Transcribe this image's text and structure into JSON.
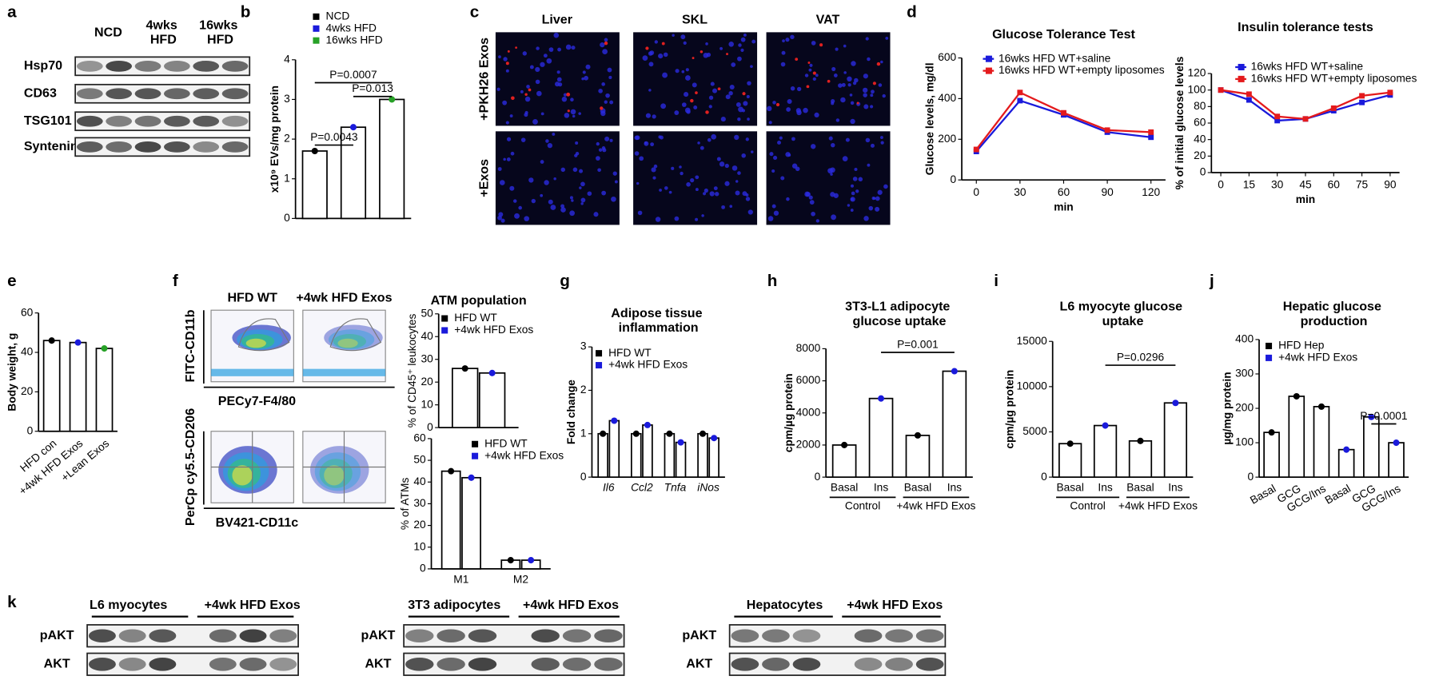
{
  "panel_labels": [
    "a",
    "b",
    "c",
    "d",
    "e",
    "f",
    "g",
    "h",
    "i",
    "j",
    "k"
  ],
  "blot_a": {
    "columns": [
      "NCD",
      "4wks HFD",
      "16wks HFD"
    ],
    "rows": [
      "Hsp70",
      "CD63",
      "TSG101",
      "Syntenin1"
    ]
  },
  "micrographs": {
    "columns": [
      "Liver",
      "SKL",
      "VAT"
    ],
    "rows": [
      "+PKH26 Exos",
      "+Exos"
    ]
  },
  "flow": {
    "columns": [
      "HFD WT",
      "+4wk HFD Exos"
    ],
    "y_axes": [
      "FITC-CD11b",
      "PerCp cy5.5-CD206"
    ],
    "x_axes": [
      "PECy7-F4/80",
      "BV421-CD11c"
    ]
  },
  "blot_k": [
    {
      "groups": [
        "L6 myocytes",
        "+4wk HFD Exos"
      ],
      "rows": [
        "pAKT",
        "AKT"
      ]
    },
    {
      "groups": [
        "3T3 adipocytes",
        "+4wk HFD Exos"
      ],
      "rows": [
        "pAKT",
        "AKT"
      ]
    },
    {
      "groups": [
        "Hepatocytes",
        "+4wk HFD Exos"
      ],
      "rows": [
        "pAKT",
        "AKT"
      ]
    }
  ],
  "chart_data": [
    {
      "type": "bar",
      "y_label": "x10⁹ EVs/mg protein",
      "categories": [
        null,
        null,
        null
      ],
      "series": [
        {
          "name": "NCD",
          "color": "#000000",
          "values": [
            1.7,
            null,
            null
          ]
        },
        {
          "name": "4wks HFD",
          "color": "#1a1adb",
          "values": [
            null,
            2.3,
            null
          ]
        },
        {
          "name": "16wks HFD",
          "color": "#27a127",
          "values": [
            null,
            null,
            3.0
          ]
        }
      ],
      "ylim": [
        0,
        4
      ],
      "yticks": [
        0,
        1,
        2,
        3,
        4
      ],
      "annotations": [
        "P=0.0007",
        "P=0.013",
        "P=0.0043"
      ]
    },
    {
      "type": "line",
      "title": "Glucose Tolerance Test",
      "x_label": "min",
      "y_label": "Glucose levels, mg/dl",
      "x": [
        0,
        30,
        60,
        90,
        120
      ],
      "xlim": [
        -10,
        130
      ],
      "xticks": [
        0,
        30,
        60,
        90,
        120
      ],
      "series": [
        {
          "name": "16wks HFD WT+saline",
          "color": "#1a1adb",
          "values": [
            140,
            390,
            320,
            235,
            210
          ]
        },
        {
          "name": "16wks HFD WT+empty liposomes",
          "color": "#e41a1c",
          "values": [
            150,
            430,
            330,
            245,
            235
          ]
        }
      ],
      "ylim": [
        0,
        600
      ],
      "yticks": [
        0,
        200,
        400,
        600
      ]
    },
    {
      "type": "line",
      "title": "Insulin tolerance tests",
      "x_label": "min",
      "y_label": "% of initial glucose levels",
      "x": [
        0,
        15,
        30,
        45,
        60,
        75,
        90
      ],
      "xlim": [
        -5,
        95
      ],
      "xticks": [
        0,
        15,
        30,
        45,
        60,
        75,
        90
      ],
      "series": [
        {
          "name": "16wks HFD WT+saline",
          "color": "#1a1adb",
          "values": [
            100,
            88,
            63,
            65,
            75,
            85,
            94
          ]
        },
        {
          "name": "16wks HFD WT+empty liposomes",
          "color": "#e41a1c",
          "values": [
            100,
            95,
            68,
            65,
            78,
            93,
            97
          ]
        }
      ],
      "ylim": [
        0,
        120
      ],
      "yticks": [
        0,
        20,
        40,
        60,
        80,
        100,
        120
      ]
    },
    {
      "type": "bar",
      "y_label": "Body weight, g",
      "categories": [
        "HFD con",
        "+4wk HFD Exos",
        "+Lean Exos"
      ],
      "values": [
        46,
        45,
        42
      ],
      "colors": [
        "#000000",
        "#1a1adb",
        "#27a127"
      ],
      "ylim": [
        0,
        60
      ],
      "yticks": [
        0,
        20,
        40,
        60
      ]
    },
    {
      "type": "bar",
      "title": "ATM population",
      "y_label": "% of CD45⁺ leukocytes",
      "categories": [
        null
      ],
      "series": [
        {
          "name": "HFD WT",
          "color": "#000000",
          "values": [
            26
          ]
        },
        {
          "name": "+4wk HFD Exos",
          "color": "#1a1adb",
          "values": [
            24
          ]
        }
      ],
      "ylim": [
        0,
        50
      ],
      "yticks": [
        0,
        10,
        20,
        30,
        40,
        50
      ]
    },
    {
      "type": "bar",
      "y_label": "% of ATMs",
      "categories": [
        "M1",
        "M2"
      ],
      "series": [
        {
          "name": "HFD WT",
          "color": "#000000",
          "values": [
            45,
            4
          ]
        },
        {
          "name": "+4wk HFD Exos",
          "color": "#1a1adb",
          "values": [
            42,
            4
          ]
        }
      ],
      "ylim": [
        0,
        60
      ],
      "yticks": [
        0,
        10,
        20,
        30,
        40,
        50,
        60
      ]
    },
    {
      "type": "bar",
      "title": "Adipose tissue inflammation",
      "y_label": "Fold change",
      "categories": [
        "Il6",
        "Ccl2",
        "Tnfa",
        "iNos"
      ],
      "series": [
        {
          "name": "HFD WT",
          "color": "#000000",
          "values": [
            1.0,
            1.0,
            1.0,
            1.0
          ]
        },
        {
          "name": "+4wk HFD Exos",
          "color": "#1a1adb",
          "values": [
            1.3,
            1.2,
            0.8,
            0.9
          ]
        }
      ],
      "ylim": [
        0,
        3
      ],
      "yticks": [
        0,
        1,
        2,
        3
      ]
    },
    {
      "type": "bar",
      "title": "3T3-L1 adipocyte glucose uptake",
      "y_label": "cpm/µg protein",
      "categories": [
        "Basal",
        "Ins",
        "Basal",
        "Ins"
      ],
      "groups": [
        "Control",
        "+4wk HFD Exos"
      ],
      "values": [
        2000,
        4900,
        2600,
        6600
      ],
      "colors": [
        "#000000",
        "#1a1adb",
        "#000000",
        "#1a1adb"
      ],
      "ylim": [
        0,
        8000
      ],
      "yticks": [
        0,
        2000,
        4000,
        6000,
        8000
      ],
      "annotations": [
        "P=0.001"
      ]
    },
    {
      "type": "bar",
      "title": "L6 myocyte glucose uptake",
      "y_label": "cpm/µg protein",
      "categories": [
        "Basal",
        "Ins",
        "Basal",
        "Ins"
      ],
      "groups": [
        "Control",
        "+4wk HFD Exos"
      ],
      "values": [
        3700,
        5700,
        4000,
        8200
      ],
      "colors": [
        "#000000",
        "#1a1adb",
        "#000000",
        "#1a1adb"
      ],
      "ylim": [
        0,
        15000
      ],
      "yticks": [
        0,
        5000,
        10000,
        15000
      ],
      "annotations": [
        "P=0.0296"
      ]
    },
    {
      "type": "bar",
      "title": "Hepatic glucose production",
      "y_label": "µg/mg protein",
      "categories": [
        "Basal",
        "GCG",
        "GCG/Ins",
        "Basal",
        "GCG",
        "GCG/Ins"
      ],
      "series": [
        {
          "name": "HFD Hep",
          "color": "#000000",
          "values": [
            130,
            235,
            205,
            null,
            null,
            null
          ]
        },
        {
          "name": "+4wk HFD Exos",
          "color": "#1a1adb",
          "values": [
            null,
            null,
            null,
            80,
            175,
            100
          ]
        }
      ],
      "ylim": [
        0,
        400
      ],
      "yticks": [
        0,
        100,
        200,
        300,
        400
      ],
      "annotations": [
        "P=0.0001"
      ]
    }
  ]
}
